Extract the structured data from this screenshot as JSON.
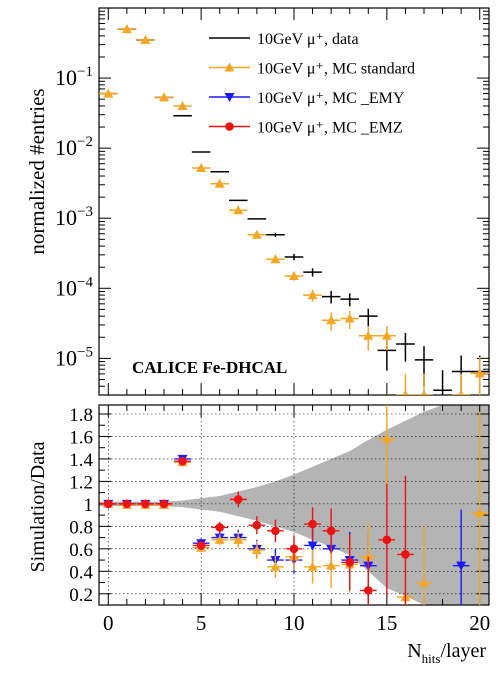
{
  "chart_data": [
    {
      "type": "scatter",
      "panel": "top",
      "ylabel": "normalized #entries",
      "yscale": "log",
      "ylim": [
        3e-06,
        1.0
      ],
      "xlim": [
        -0.5,
        20.5
      ],
      "y_ticks": [
        {
          "value": 1e-05,
          "base": "10",
          "exp": "−5"
        },
        {
          "value": 0.0001,
          "base": "10",
          "exp": "−4"
        },
        {
          "value": 0.001,
          "base": "10",
          "exp": "−3"
        },
        {
          "value": 0.01,
          "base": "10",
          "exp": "−2"
        },
        {
          "value": 0.1,
          "base": "10",
          "exp": "−1"
        }
      ],
      "annotation": "CALICE Fe-DHCAL",
      "legend": {
        "placement": "top-right",
        "entries": [
          {
            "label": "10GeV μ⁺, data",
            "color": "#000000",
            "marker": "none"
          },
          {
            "label": "10GeV μ⁺, MC standard",
            "color": "#f5a623",
            "marker": "triangle-up"
          },
          {
            "label": "10GeV μ⁺, MC _EMY",
            "color": "#1a1aff",
            "marker": "triangle-down"
          },
          {
            "label": "10GeV μ⁺, MC _EMZ",
            "color": "#ee1111",
            "marker": "circle"
          }
        ]
      },
      "series": [
        {
          "name": "10GeV μ⁺, data",
          "color": "#000000",
          "marker": "none",
          "x": [
            0,
            1,
            2,
            3,
            4,
            5,
            6,
            7,
            8,
            9,
            10,
            11,
            12,
            13,
            14,
            15,
            16,
            17,
            18,
            19,
            20
          ],
          "y": [
            0.06,
            0.5,
            0.35,
            0.053,
            0.029,
            0.0088,
            0.0046,
            0.0018,
            0.00098,
            0.00058,
            0.00028,
            0.00017,
            7.6e-05,
            7e-05,
            4e-05,
            1.3e-05,
            1.6e-05,
            9.5e-06,
            3.5e-06,
            6.5e-06,
            6.5e-06
          ]
        },
        {
          "name": "10GeV μ⁺, MC standard",
          "color": "#f5a623",
          "marker": "triangle-up",
          "x": [
            0,
            1,
            2,
            3,
            4,
            5,
            6,
            7,
            8,
            9,
            10,
            11,
            12,
            13,
            14,
            15,
            16,
            17,
            19,
            20
          ],
          "y": [
            0.06,
            0.5,
            0.35,
            0.053,
            0.04,
            0.0052,
            0.0031,
            0.0013,
            0.00058,
            0.00026,
            0.00015,
            8e-05,
            3.5e-05,
            3.7e-05,
            2.1e-05,
            2.1e-05,
            3e-06,
            3e-06,
            3e-06,
            6.1e-06
          ]
        }
      ]
    },
    {
      "type": "scatter",
      "panel": "bottom",
      "ylabel": "Simulation/Data",
      "xlabel_main": "N",
      "xlabel_sub": "hits",
      "xlabel_rest": "/layer",
      "xlim": [
        -0.5,
        20.5
      ],
      "ylim": [
        0.1,
        1.88
      ],
      "x_ticks": [
        0,
        5,
        10,
        15,
        20
      ],
      "y_ticks": [
        0.2,
        0.4,
        0.6,
        0.8,
        1,
        1.2,
        1.4,
        1.6,
        1.8
      ],
      "grid": true,
      "band": {
        "color": "#b4b4b4",
        "x": [
          -0.5,
          0,
          1,
          2,
          3,
          4,
          5,
          6,
          7,
          8,
          9,
          10,
          11,
          12,
          13,
          14,
          15,
          16,
          17,
          18,
          19,
          20,
          20.5
        ],
        "lower": [
          0.98,
          0.98,
          0.98,
          0.98,
          0.98,
          0.97,
          0.95,
          0.93,
          0.89,
          0.85,
          0.8,
          0.75,
          0.68,
          0.62,
          0.54,
          0.4,
          0.25,
          0.18,
          0.1,
          0.1,
          0.1,
          0.1,
          0.1
        ],
        "upper": [
          1.02,
          1.02,
          1.02,
          1.02,
          1.02,
          1.03,
          1.05,
          1.07,
          1.11,
          1.15,
          1.2,
          1.26,
          1.33,
          1.4,
          1.47,
          1.57,
          1.66,
          1.74,
          1.82,
          1.88,
          1.88,
          1.88,
          1.88
        ]
      },
      "series": [
        {
          "name": "10GeV μ⁺, MC _EMY",
          "color": "#1a1aff",
          "marker": "triangle-down",
          "x": [
            0,
            1,
            2,
            3,
            4,
            5,
            6,
            7,
            8,
            9,
            10,
            11,
            12,
            13,
            14,
            19
          ],
          "y": [
            1.0,
            1.0,
            1.0,
            1.0,
            1.4,
            0.65,
            0.7,
            0.7,
            0.6,
            0.5,
            0.5,
            0.63,
            0.6,
            0.5,
            0.45,
            0.45
          ],
          "err": [
            0.02,
            0.02,
            0.02,
            0.02,
            0.03,
            0.04,
            0.05,
            0.07,
            0.08,
            0.1,
            0.12,
            0.15,
            0.2,
            0.25,
            0.3,
            0.5
          ]
        },
        {
          "name": "10GeV μ⁺, MC standard",
          "color": "#f5a623",
          "marker": "triangle-up",
          "x": [
            0,
            1,
            2,
            3,
            4,
            5,
            6,
            7,
            8,
            9,
            10,
            11,
            12,
            13,
            14,
            15,
            16,
            17,
            20
          ],
          "y": [
            1.0,
            0.99,
            0.99,
            0.99,
            1.37,
            0.61,
            0.68,
            0.68,
            0.59,
            0.44,
            0.53,
            0.44,
            0.45,
            0.46,
            0.53,
            1.58,
            0.17,
            0.3,
            0.92
          ],
          "err": [
            0.02,
            0.02,
            0.02,
            0.02,
            0.03,
            0.04,
            0.05,
            0.07,
            0.08,
            0.1,
            0.12,
            0.15,
            0.2,
            0.25,
            0.3,
            0.5,
            0.4,
            0.5,
            0.9
          ]
        },
        {
          "name": "10GeV μ⁺, MC _EMZ",
          "color": "#ee1111",
          "marker": "circle",
          "x": [
            0,
            1,
            2,
            3,
            4,
            5,
            6,
            7,
            8,
            9,
            10,
            11,
            12,
            13,
            14,
            15,
            16
          ],
          "y": [
            1.0,
            1.0,
            1.0,
            1.0,
            1.38,
            0.63,
            0.79,
            1.04,
            0.81,
            0.76,
            0.6,
            0.82,
            0.76,
            0.48,
            0.23,
            0.68,
            0.55
          ],
          "err": [
            0.02,
            0.02,
            0.02,
            0.02,
            0.03,
            0.04,
            0.05,
            0.07,
            0.08,
            0.1,
            0.12,
            0.15,
            0.2,
            0.25,
            0.3,
            0.5,
            0.7
          ]
        }
      ]
    }
  ]
}
